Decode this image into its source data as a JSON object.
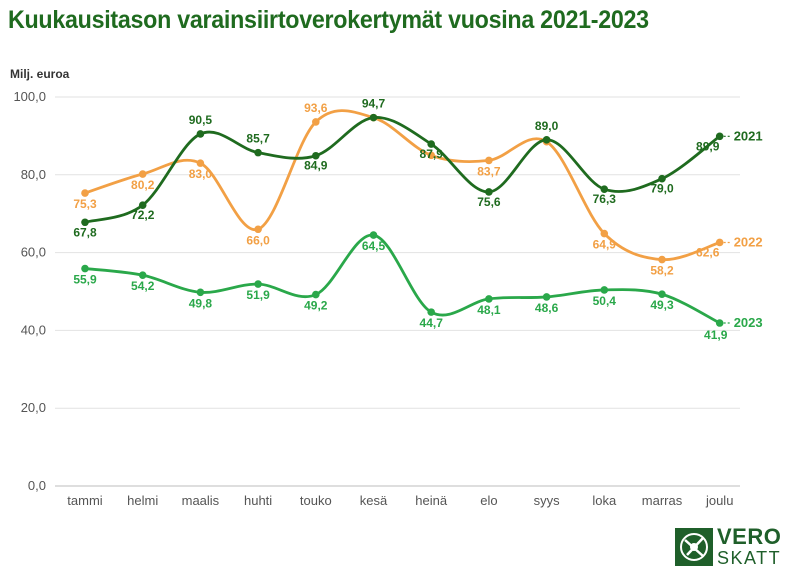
{
  "title": "Kuukausitason varainsiirtoverokertymät vuosina 2021-2023",
  "logo": {
    "line1": "VERO",
    "line2": "SKATT"
  },
  "chart_data": {
    "type": "line",
    "ylabel": "Milj. euroa",
    "ylim": [
      0,
      100
    ],
    "yticks": [
      "0,0",
      "20,0",
      "40,0",
      "60,0",
      "80,0",
      "100,0"
    ],
    "ytick_values": [
      0,
      20,
      40,
      60,
      80,
      100
    ],
    "grid": true,
    "legend": "right-end labels",
    "categories": [
      "tammi",
      "helmi",
      "maalis",
      "huhti",
      "touko",
      "kesä",
      "heinä",
      "elo",
      "syys",
      "loka",
      "marras",
      "joulu"
    ],
    "series": [
      {
        "name": "2021",
        "color": "#1f6b1f",
        "values": [
          67.8,
          72.2,
          90.5,
          85.7,
          84.9,
          94.7,
          87.9,
          75.6,
          89.0,
          76.3,
          79.0,
          89.9
        ],
        "labels": [
          "67,8",
          "72,2",
          "90,5",
          "85,7",
          "84,9",
          "94,7",
          "87,9",
          "75,6",
          "89,0",
          "76,3",
          "79,0",
          "89,9"
        ]
      },
      {
        "name": "2022",
        "color": "#f2a045",
        "values": [
          75.3,
          80.2,
          83.0,
          66.0,
          93.6,
          94.7,
          85.0,
          83.7,
          88.5,
          64.9,
          58.2,
          62.6
        ],
        "labels": [
          "75,3",
          "80,2",
          "83,0",
          "66,0",
          "93,6",
          "",
          "",
          "83,7",
          "",
          "64,9",
          "58,2",
          "62,6"
        ]
      },
      {
        "name": "2023",
        "color": "#2aa84a",
        "values": [
          55.9,
          54.2,
          49.8,
          51.9,
          49.2,
          64.5,
          44.7,
          48.1,
          48.6,
          50.4,
          49.3,
          41.9
        ],
        "labels": [
          "55,9",
          "54,2",
          "49,8",
          "51,9",
          "49,2",
          "64,5",
          "44,7",
          "48,1",
          "48,6",
          "50,4",
          "49,3",
          "41,9"
        ]
      }
    ]
  }
}
